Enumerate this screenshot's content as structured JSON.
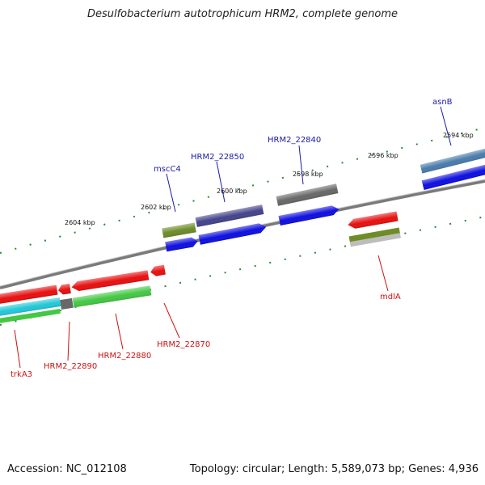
{
  "title": "Desulfobacterium autotrophicum HRM2, complete genome",
  "footer": {
    "accession": "Accession: NC_012108",
    "summary": "Topology: circular; Length: 5,589,073 bp; Genes: 4,936"
  },
  "colors": {
    "blue": "#1010e0",
    "red": "#e81010",
    "green": "#44c844",
    "olive": "#6e8c28",
    "navy": "#44448c",
    "gray": "#686868",
    "steel": "#4a7cac",
    "cyan": "#22c8d8",
    "backbone": "#7a7a7a",
    "tick": "#2a8a2a",
    "label_blue": "#1a1aa6",
    "label_red": "#cc1111"
  },
  "scale_labels": [
    "2594 kbp",
    "2596 kbp",
    "2598 kbp",
    "2600 kbp",
    "2602 kbp",
    "2604 kbp"
  ],
  "labels_top": [
    "asnB",
    "HRM2_22840",
    "HRM2_22850",
    "mscC4"
  ],
  "labels_bottom": [
    "mdlA",
    "HRM2_22870",
    "HRM2_22880",
    "HRM2_22890",
    "trkA3"
  ]
}
